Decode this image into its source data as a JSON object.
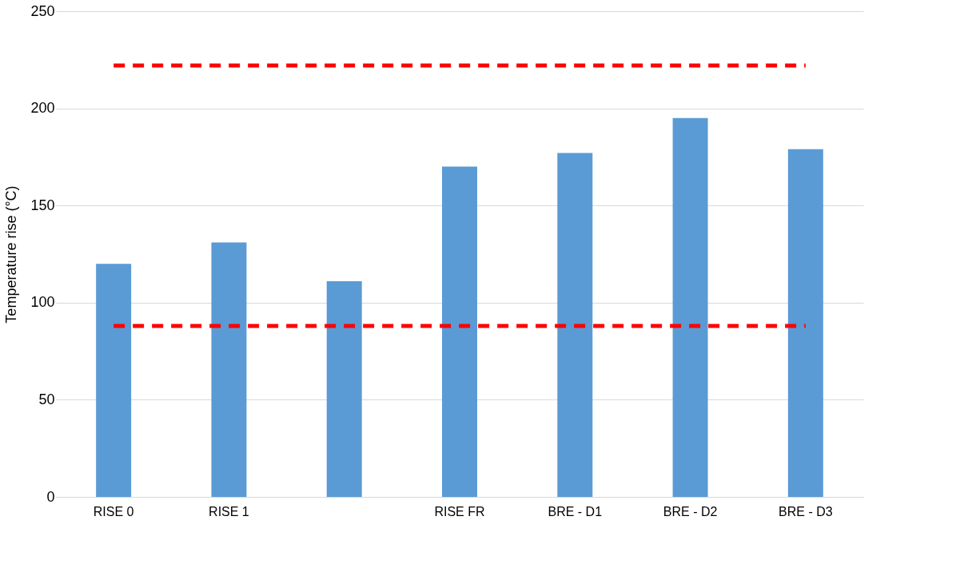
{
  "chart_data": {
    "type": "bar",
    "ylabel": "Temperature rise (°C)",
    "categories": [
      "RISE 0",
      "RISE 1",
      null,
      "RISE FR",
      "BRE - D1",
      "BRE - D2",
      "BRE - D3"
    ],
    "values": [
      120,
      131,
      111,
      170,
      177,
      195,
      179
    ],
    "color": "#5b9bd5",
    "ylim": [
      0,
      250
    ],
    "yticks": [
      0,
      50,
      100,
      150,
      200,
      250
    ],
    "grid": "y",
    "ref_lines": [
      {
        "axis": "y",
        "value": 88,
        "label": null,
        "color": "#ff0000",
        "line_style": "dashed"
      },
      {
        "axis": "y",
        "value": 222,
        "label": null,
        "color": "#ff0000",
        "line_style": "dashed"
      }
    ]
  }
}
